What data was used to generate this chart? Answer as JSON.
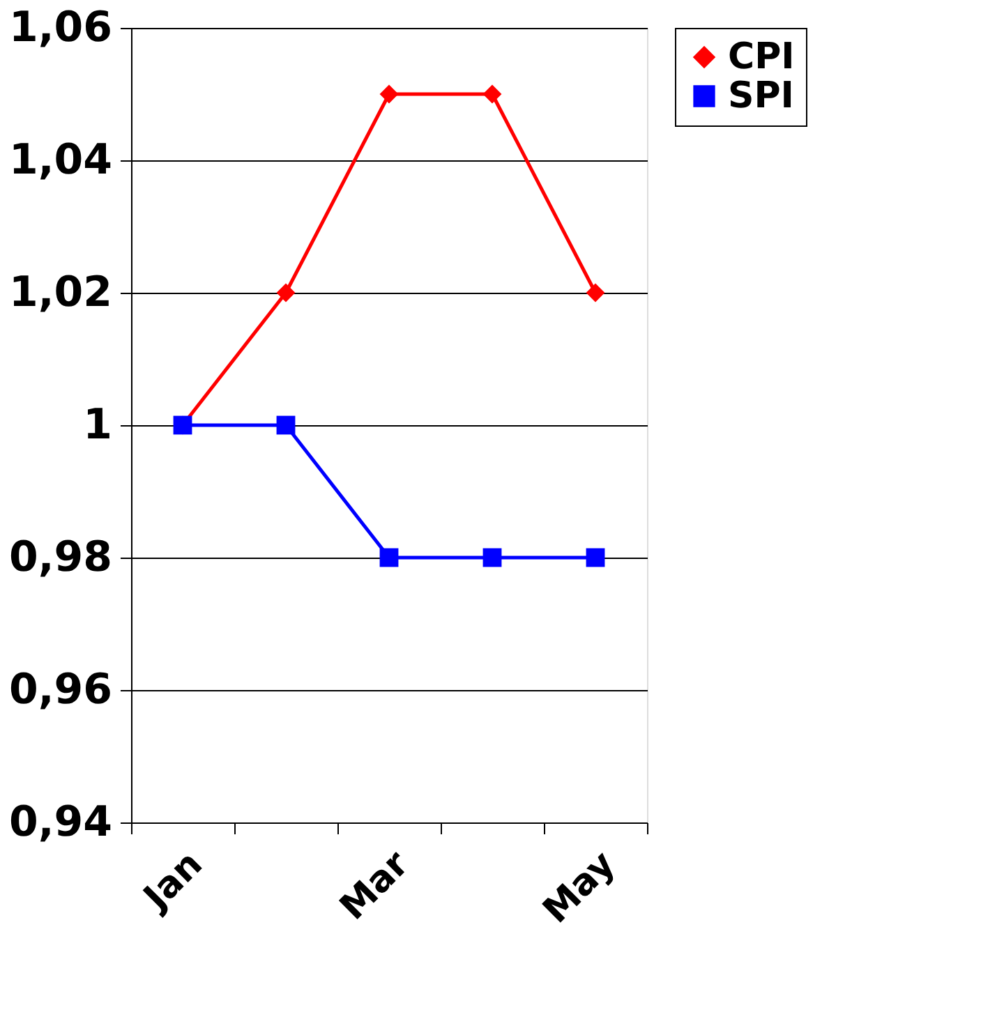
{
  "chart_data": {
    "type": "line",
    "categories": [
      "Jan",
      null,
      "Mar",
      null,
      "May"
    ],
    "series": [
      {
        "name": "CPI",
        "color": "#ff0000",
        "marker": "diamond",
        "values": [
          1.0,
          1.02,
          1.05,
          1.05,
          1.02
        ]
      },
      {
        "name": "SPI",
        "color": "#0000ff",
        "marker": "square",
        "values": [
          1.0,
          1.0,
          0.98,
          0.98,
          0.98
        ]
      }
    ],
    "ylim": [
      0.94,
      1.06
    ],
    "yticks": [
      {
        "value": 0.94,
        "label": "0,94"
      },
      {
        "value": 0.96,
        "label": "0,96"
      },
      {
        "value": 0.98,
        "label": "0,98"
      },
      1,
      {
        "value": 1.02,
        "label": "1,02"
      },
      {
        "value": 1.04,
        "label": "1,04"
      },
      {
        "value": 1.06,
        "label": "1,06"
      }
    ],
    "grid": "y",
    "legend": "right",
    "line_style": "solid"
  }
}
